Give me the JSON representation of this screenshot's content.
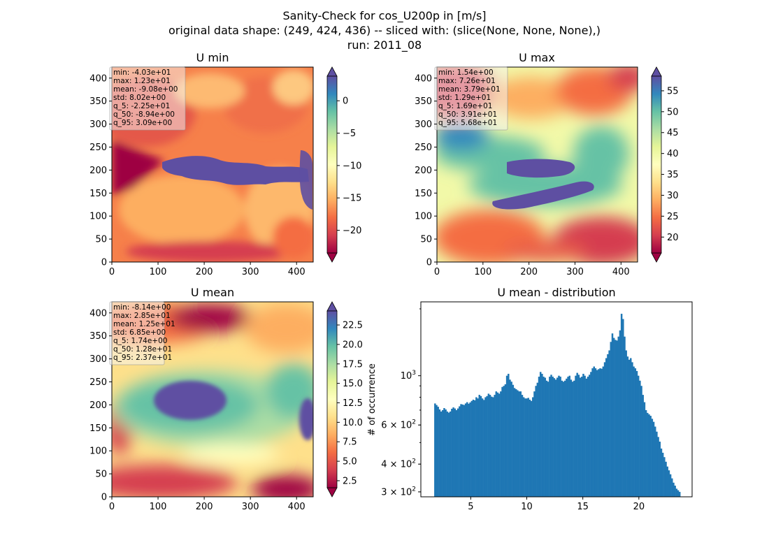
{
  "figure": {
    "suptitle_lines": [
      "Sanity-Check for cos_U200p in [m/s]",
      "original data shape: (249, 424, 436) -- sliced with: (slice(None, None, None),)",
      "run: 2011_08"
    ]
  },
  "colors": {
    "spectral": [
      "#9e0142",
      "#d53e4f",
      "#f46d43",
      "#fdae61",
      "#fee08b",
      "#ffffbf",
      "#e6f598",
      "#abdda4",
      "#66c2a5",
      "#3288bd",
      "#5e4fa2"
    ],
    "hist_bar": "#1f77b4"
  },
  "chart_data": [
    {
      "type": "heatmap",
      "title": "U min",
      "x_ticks": [
        0,
        100,
        200,
        300,
        400
      ],
      "y_ticks": [
        0,
        50,
        100,
        150,
        200,
        250,
        300,
        350,
        400
      ],
      "xlim": [
        0,
        436
      ],
      "ylim": [
        0,
        424
      ],
      "colorbar": {
        "range": [
          -23.5,
          3.8
        ],
        "ticks": [
          0,
          -5,
          -10,
          -15,
          -20
        ],
        "tick_labels": [
          "0",
          "−5",
          "−10",
          "−15",
          "−20"
        ]
      },
      "stats": [
        "min: -4.03e+01",
        "max: 1.23e+01",
        "mean: -9.08e+00",
        "std: 8.02e+00",
        "q_5: -2.25e+01",
        "q_50: -8.94e+00",
        "q_95: 3.09e+00"
      ]
    },
    {
      "type": "heatmap",
      "title": "U max",
      "x_ticks": [
        0,
        100,
        200,
        300,
        400
      ],
      "y_ticks": [
        0,
        50,
        100,
        150,
        200,
        250,
        300,
        350,
        400
      ],
      "xlim": [
        0,
        436
      ],
      "ylim": [
        0,
        424
      ],
      "colorbar": {
        "range": [
          16.2,
          58.5
        ],
        "ticks": [
          55,
          50,
          45,
          40,
          35,
          30,
          25,
          20
        ],
        "tick_labels": [
          "55",
          "50",
          "45",
          "40",
          "35",
          "30",
          "25",
          "20"
        ]
      },
      "stats": [
        "min: 1.54e+00",
        "max: 7.26e+01",
        "mean: 3.79e+01",
        "std: 1.29e+01",
        "q_5: 1.69e+01",
        "q_50: 3.91e+01",
        "q_95: 5.68e+01"
      ]
    },
    {
      "type": "heatmap",
      "title": "U mean",
      "x_ticks": [
        0,
        100,
        200,
        300,
        400
      ],
      "y_ticks": [
        0,
        50,
        100,
        150,
        200,
        250,
        300,
        350,
        400
      ],
      "xlim": [
        0,
        436
      ],
      "ylim": [
        0,
        424
      ],
      "colorbar": {
        "range": [
          1.6,
          24.3
        ],
        "ticks": [
          22.5,
          20,
          17.5,
          15,
          12.5,
          10,
          7.5,
          5,
          2.5
        ],
        "tick_labels": [
          "22.5",
          "20.0",
          "17.5",
          "15.0",
          "12.5",
          "10.0",
          "7.5",
          "5.0",
          "2.5"
        ]
      },
      "stats": [
        "min: -8.14e+00",
        "max: 2.85e+01",
        "mean: 1.25e+01",
        "std: 6.85e+00",
        "q_5: 1.74e+00",
        "q_50: 1.28e+01",
        "q_95: 2.37e+01"
      ]
    },
    {
      "type": "bar",
      "title": "U mean - distribution",
      "ylabel": "# of occurrence",
      "y_scale": "log",
      "xlim": [
        0.55,
        24.75
      ],
      "ylim": [
        285,
        2150
      ],
      "x_ticks": [
        5,
        10,
        15,
        20
      ],
      "y_tick_labels": [
        {
          "value": 1000,
          "base": "10",
          "exp": "3"
        },
        {
          "value": 600,
          "base": "6 × 10",
          "exp": "2"
        },
        {
          "value": 400,
          "base": "4 × 10",
          "exp": "2"
        },
        {
          "value": 300,
          "base": "3 × 10",
          "exp": "2"
        }
      ],
      "bin_range": [
        1.74,
        23.7
      ],
      "counts": [
        750,
        738,
        725,
        705,
        690,
        700,
        715,
        705,
        690,
        682,
        690,
        710,
        720,
        712,
        700,
        712,
        728,
        745,
        742,
        738,
        750,
        760,
        748,
        758,
        770,
        780,
        775,
        800,
        790,
        820,
        810,
        790,
        778,
        800,
        810,
        830,
        820,
        805,
        800,
        820,
        850,
        840,
        830,
        850,
        890,
        900,
        915,
        1000,
        1020,
        960,
        940,
        910,
        880,
        870,
        860,
        850,
        850,
        820,
        800,
        790,
        790,
        795,
        780,
        770,
        800,
        850,
        900,
        930,
        990,
        1040,
        1020,
        990,
        980,
        950,
        940,
        990,
        1010,
        990,
        975,
        960,
        980,
        1000,
        990,
        950,
        940,
        950,
        970,
        990,
        1000,
        960,
        940,
        950,
        1000,
        1030,
        1010,
        980,
        990,
        1020,
        1000,
        970,
        990,
        1010,
        1040,
        1080,
        1100,
        1080,
        1060,
        1070,
        1080,
        1075,
        1100,
        1150,
        1200,
        1250,
        1300,
        1420,
        1550,
        1480,
        1450,
        1440,
        1500,
        1600,
        1900,
        1800,
        1500,
        1300,
        1220,
        1180,
        1200,
        1150,
        1100,
        1080,
        1050,
        1000,
        950,
        900,
        820,
        760,
        700,
        680,
        670,
        660,
        640,
        620,
        590,
        560,
        530,
        505,
        470,
        450,
        430,
        410,
        390,
        375,
        360,
        345,
        330,
        320,
        310,
        305,
        300
      ]
    }
  ]
}
